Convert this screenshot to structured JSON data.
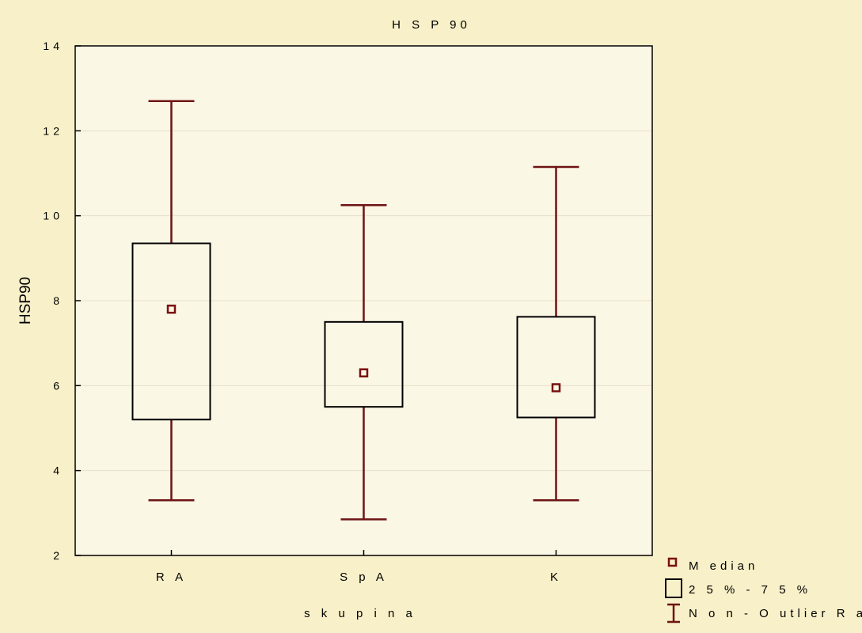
{
  "chart_data": {
    "type": "box",
    "title": "H S P 90",
    "xlabel": "s k u p i n a",
    "ylabel": "HSP90",
    "ylim": [
      2,
      14
    ],
    "yticks": [
      2,
      4,
      6,
      8,
      10,
      12,
      14
    ],
    "grid": true,
    "categories": [
      "R A",
      "S p A",
      "K"
    ],
    "boxes": [
      {
        "median": 7.8,
        "q1": 5.2,
        "q3": 9.35,
        "whisker_low": 3.3,
        "whisker_high": 12.7
      },
      {
        "median": 6.3,
        "q1": 5.5,
        "q3": 7.5,
        "whisker_low": 2.85,
        "whisker_high": 10.25
      },
      {
        "median": 5.95,
        "q1": 5.25,
        "q3": 7.62,
        "whisker_low": 3.3,
        "whisker_high": 11.15
      }
    ],
    "legend": {
      "placement": "bottom-right",
      "items": [
        "M edian",
        "2 5 %  - 7 5 %",
        "N o n - O utlier  R a n g e"
      ]
    },
    "colors": {
      "background": "#f8f0c8",
      "plot_bg": "#fbf7e5",
      "whisker": "#6e1414",
      "median": "#7a1010",
      "box": "#000000"
    }
  }
}
